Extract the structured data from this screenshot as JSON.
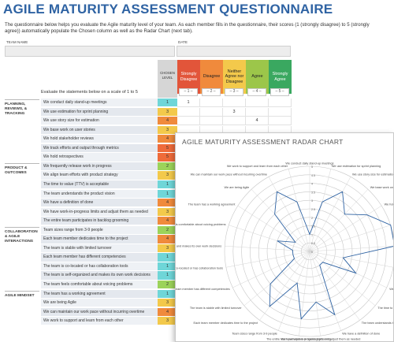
{
  "title": "AGILE MATURITY ASSESSMENT QUESTIONNAIRE",
  "intro": "The questionnaire below helps you evaluate the Agile maturity level of your team. As each member fills in the questionnaire, their scores (1 (strongly disagree) to 5 (strongly agree)) automatically populate the Chosen column as well as the Radar Chart (next tab).",
  "header": {
    "team_label": "TEAM NAME",
    "date_label": "DATE"
  },
  "table": {
    "chosen_label": "CHOSEN LEVEL",
    "eval_label": "Evaluate the statements below on a scale of 1 to 5",
    "scale": [
      {
        "label": "Strongly Disagree",
        "num": "– 1 –",
        "color": "#e2553a"
      },
      {
        "label": "Disagree",
        "num": "– 2 –",
        "color": "#f08a3c"
      },
      {
        "label": "Neither Agree nor Disagree",
        "num": "– 3 –",
        "color": "#f3c94b"
      },
      {
        "label": "Agree",
        "num": "– 4 –",
        "color": "#9cc64a"
      },
      {
        "label": "Strongly Agree",
        "num": "– 5 –",
        "color": "#3aa860"
      }
    ],
    "sections": [
      {
        "label": "PLANNING, REVIEWS, & TRACKING"
      },
      {
        "label": "PRODUCT & OUTCOMES"
      },
      {
        "label": "COLLABORATION & AGILE INTERACTIONS"
      },
      {
        "label": "AGILE MINDSET"
      }
    ],
    "rows": [
      {
        "text": "We conduct daily stand-up meetings",
        "chosen": "1"
      },
      {
        "text": "We use estimation for sprint planning",
        "chosen": "3"
      },
      {
        "text": "We use story size for estimation",
        "chosen": "4"
      },
      {
        "text": "We base work on user stories",
        "chosen": "3"
      },
      {
        "text": "We hold stakeholder reviews",
        "chosen": "4"
      },
      {
        "text": "We track efforts and output through metrics",
        "chosen": "5"
      },
      {
        "text": "We hold retrospectives",
        "chosen": "5"
      },
      {
        "text": "We frequently release work in progress",
        "chosen": "2"
      },
      {
        "text": "We align team efforts with product strategy",
        "chosen": "3"
      },
      {
        "text": "The time to value (TTV) is acceptable",
        "chosen": "1"
      },
      {
        "text": "The team understands the product vision",
        "chosen": "1"
      },
      {
        "text": "We have a definition of done",
        "chosen": "4"
      },
      {
        "text": "We have work-in-progress limits and adjust them as needed",
        "chosen": "3"
      },
      {
        "text": "The entire team participates in backlog grooming",
        "chosen": "4"
      },
      {
        "text": "Team sizes range from 3-9 people",
        "chosen": "2"
      },
      {
        "text": "Each team member dedicates time to the project",
        "chosen": "4"
      },
      {
        "text": "The team is stable with limited turnover",
        "chosen": "3"
      },
      {
        "text": "Each team member has different competencies",
        "chosen": "1"
      },
      {
        "text": "The team is co-located or has collaboration tools",
        "chosen": "1"
      },
      {
        "text": "The team is self-organized and makes its own work decisions",
        "chosen": "1"
      },
      {
        "text": "The team feels comfortable about voicing problems",
        "chosen": "2"
      },
      {
        "text": "The team has a working agreement",
        "chosen": "1"
      },
      {
        "text": "We are being Agile",
        "chosen": "3"
      },
      {
        "text": "We can maintain our work pace without incurring overtime",
        "chosen": "4"
      },
      {
        "text": "We work to support and learn from each other",
        "chosen": "3"
      }
    ],
    "visible_marks": [
      {
        "row": 0,
        "col": 0,
        "value": "1"
      },
      {
        "row": 1,
        "col": 2,
        "value": "3"
      },
      {
        "row": 2,
        "col": 3,
        "value": "4"
      }
    ]
  },
  "radar": {
    "title": "AGILE MATURITY ASSESSMENT RADAR CHART",
    "rmax": 5,
    "ticks": [
      "0",
      "0.5",
      "1",
      "1.5",
      "2",
      "2.5",
      "3",
      "3.5",
      "4",
      "4.5",
      "5"
    ],
    "line_color": "#2f63a3",
    "chart_data": {
      "type": "radar",
      "categories": [
        "We conduct daily stand-up meetings",
        "We use estimation for sprint planning",
        "We use story size for estimation",
        "We base work on user stories",
        "We hold stakeholder reviews",
        "We track efforts and output through metrics",
        "We hold retrospectives",
        "We frequently release work in progress",
        "We align team efforts with product strategy",
        "The time to value (TTV) is acceptable",
        "The team understands the product vision",
        "We have a definition of done",
        "We have work-in-progress limits and adjust them as needed",
        "The entire team participates in backlog grooming",
        "Team sizes range from 3-9 people",
        "Each team member dedicates time to the project",
        "The team is stable with limited turnover",
        "Each team member has different competencies",
        "The team is co-located or has collaboration tools",
        "The team is self-organized and makes its own work decisions",
        "The team feels comfortable about voicing problems",
        "The team has a working agreement",
        "We are being Agile",
        "We can maintain our work pace without incurring overtime",
        "We work to support and learn from each other"
      ],
      "values": [
        1,
        3,
        4,
        3,
        4,
        5,
        5,
        2,
        3,
        1,
        1,
        4,
        3,
        4,
        2,
        4,
        3,
        1,
        1,
        1,
        2,
        1,
        3,
        4,
        3
      ],
      "rlim": [
        0,
        5
      ]
    }
  }
}
